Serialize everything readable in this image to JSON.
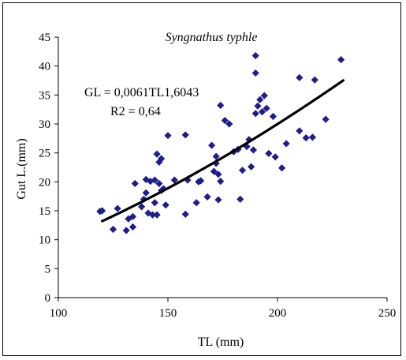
{
  "chart_data": {
    "type": "scatter",
    "title": "Syngnathus typhle",
    "xlabel": "TL (mm)",
    "ylabel": "Gut L.(mm)",
    "xlim": [
      100,
      250
    ],
    "ylim": [
      0,
      45
    ],
    "x_ticks": [
      100,
      150,
      200,
      250
    ],
    "y_ticks": [
      0,
      5,
      10,
      15,
      20,
      25,
      30,
      35,
      40,
      45
    ],
    "grid": false,
    "legend": "none",
    "marker": "diamond",
    "marker_color": "#1f1f8a",
    "trend_color": "#000000",
    "annotations": {
      "equation": "GL = 0,0061TL1,6043",
      "r2": "R2 = 0,64"
    },
    "trendline": {
      "type": "power",
      "a": 0.0061,
      "b": 1.6043,
      "x_range": [
        120,
        230
      ]
    },
    "points": [
      [
        119,
        14.9
      ],
      [
        120,
        15.0
      ],
      [
        125,
        11.8
      ],
      [
        127,
        15.4
      ],
      [
        131,
        11.6
      ],
      [
        132,
        13.6
      ],
      [
        134,
        14.0
      ],
      [
        134,
        12.2
      ],
      [
        135,
        19.7
      ],
      [
        138,
        15.7
      ],
      [
        139,
        17.0
      ],
      [
        140,
        20.4
      ],
      [
        140,
        18.1
      ],
      [
        141,
        14.6
      ],
      [
        142,
        20.1
      ],
      [
        143,
        14.3
      ],
      [
        144,
        16.4
      ],
      [
        144,
        20.3
      ],
      [
        145,
        24.8
      ],
      [
        145,
        14.3
      ],
      [
        146,
        19.7
      ],
      [
        146,
        23.4
      ],
      [
        147,
        24.0
      ],
      [
        147,
        18.5
      ],
      [
        148,
        18.8
      ],
      [
        149,
        16.0
      ],
      [
        150,
        28.0
      ],
      [
        153,
        20.3
      ],
      [
        158,
        14.4
      ],
      [
        158,
        28.1
      ],
      [
        159,
        20.3
      ],
      [
        163,
        16.4
      ],
      [
        164,
        20.0
      ],
      [
        165,
        20.2
      ],
      [
        168,
        17.4
      ],
      [
        170,
        26.3
      ],
      [
        171,
        21.8
      ],
      [
        172,
        23.2
      ],
      [
        172,
        24.4
      ],
      [
        173,
        16.9
      ],
      [
        173,
        21.3
      ],
      [
        174,
        33.2
      ],
      [
        174,
        20.1
      ],
      [
        176,
        30.6
      ],
      [
        178,
        30.0
      ],
      [
        180,
        25.2
      ],
      [
        182,
        25.6
      ],
      [
        183,
        17.0
      ],
      [
        184,
        22.0
      ],
      [
        186,
        26.1
      ],
      [
        187,
        27.3
      ],
      [
        188,
        22.6
      ],
      [
        189,
        25.5
      ],
      [
        190,
        31.8
      ],
      [
        190,
        38.8
      ],
      [
        190,
        41.8
      ],
      [
        191,
        33.1
      ],
      [
        192,
        34.2
      ],
      [
        193,
        32.1
      ],
      [
        194,
        34.9
      ],
      [
        195,
        32.7
      ],
      [
        196,
        24.9
      ],
      [
        198,
        31.3
      ],
      [
        199,
        24.3
      ],
      [
        202,
        22.4
      ],
      [
        204,
        26.6
      ],
      [
        210,
        38.0
      ],
      [
        210,
        28.8
      ],
      [
        213,
        27.6
      ],
      [
        216,
        27.7
      ],
      [
        217,
        37.6
      ],
      [
        222,
        30.8
      ],
      [
        229,
        41.1
      ]
    ]
  }
}
